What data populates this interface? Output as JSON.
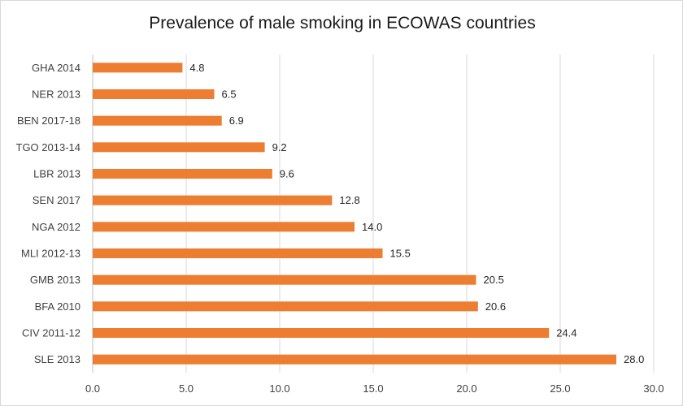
{
  "chart_data": {
    "type": "bar",
    "orientation": "horizontal",
    "title": "Prevalence of male smoking in ECOWAS countries",
    "xlabel": "",
    "ylabel": "",
    "categories": [
      "GHA 2014",
      "NER 2013",
      "BEN 2017-18",
      "TGO 2013-14",
      "LBR 2013",
      "SEN 2017",
      "NGA 2012",
      "MLI 2012-13",
      "GMB 2013",
      "BFA 2010",
      "CIV 2011-12",
      "SLE 2013"
    ],
    "values": [
      4.8,
      6.5,
      6.9,
      9.2,
      9.6,
      12.8,
      14.0,
      15.5,
      20.5,
      20.6,
      24.4,
      28.0
    ],
    "value_labels": [
      "4.8",
      "6.5",
      "6.9",
      "9.2",
      "9.6",
      "12.8",
      "14.0",
      "15.5",
      "20.5",
      "20.6",
      "24.4",
      "28.0"
    ],
    "xlim": [
      0,
      30
    ],
    "x_ticks": [
      0,
      5,
      10,
      15,
      20,
      25,
      30
    ],
    "x_tick_labels": [
      "0.0",
      "5.0",
      "10.0",
      "15.0",
      "20.0",
      "25.0",
      "30.0"
    ],
    "grid": "vertical",
    "legend": "none",
    "colors": {
      "bar": "#ED7D31",
      "grid": "#D9D9D9",
      "axis": "#BFBFBF"
    }
  }
}
